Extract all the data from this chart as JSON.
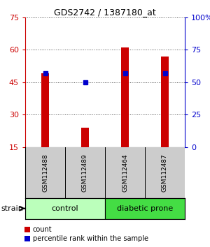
{
  "title": "GDS2742 / 1387180_at",
  "samples": [
    "GSM112488",
    "GSM112489",
    "GSM112464",
    "GSM112487"
  ],
  "counts": [
    49,
    24,
    61,
    57
  ],
  "percentiles": [
    57,
    50,
    57,
    57
  ],
  "ylim_left": [
    15,
    75
  ],
  "ylim_right": [
    0,
    100
  ],
  "yticks_left": [
    15,
    30,
    45,
    60,
    75
  ],
  "yticks_right": [
    0,
    25,
    50,
    75,
    100
  ],
  "ytick_labels_right": [
    "0",
    "25",
    "50",
    "75",
    "100%"
  ],
  "bar_color": "#cc0000",
  "dot_color": "#0000cc",
  "bar_width": 0.18,
  "groups": [
    {
      "label": "control",
      "color": "#bbffbb"
    },
    {
      "label": "diabetic prone",
      "color": "#44dd44"
    }
  ],
  "strain_label": "strain",
  "legend_count": "count",
  "legend_percentile": "percentile rank within the sample",
  "grid_color": "#555555",
  "sample_box_color": "#cccccc",
  "left_axis_color": "#cc0000",
  "right_axis_color": "#0000cc",
  "title_fontsize": 9,
  "tick_fontsize": 8,
  "sample_fontsize": 6.5,
  "group_fontsize": 8,
  "legend_fontsize": 7
}
